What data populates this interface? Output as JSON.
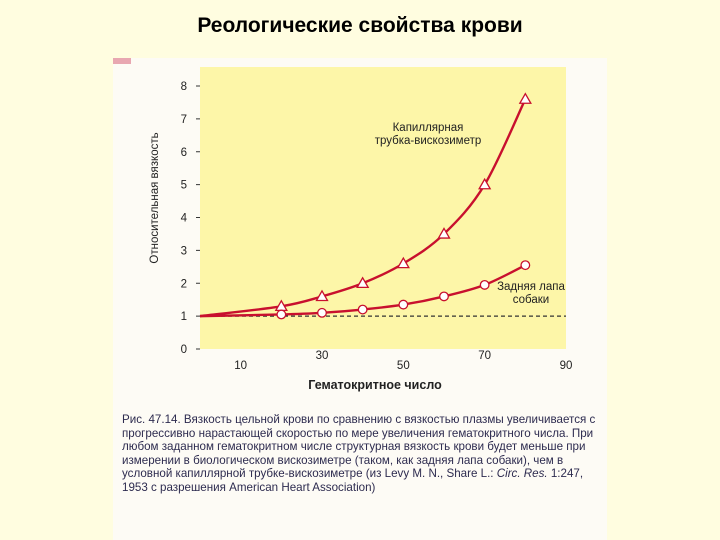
{
  "slide": {
    "title": "Реологические свойства крови"
  },
  "colors": {
    "background": "#fffde0",
    "plot_area": "#fdf6a8",
    "curve": "#c8102e",
    "accent": "#e8a7b1",
    "text": "#2d2b4f"
  },
  "chart_data": {
    "type": "line",
    "title": "",
    "xlabel": "Гематокритное число",
    "ylabel": "Относительная вязкость",
    "xlim": [
      0,
      90
    ],
    "ylim": [
      0,
      8
    ],
    "x_ticks": [
      10,
      30,
      50,
      70,
      90
    ],
    "y_ticks": [
      0,
      1,
      2,
      3,
      4,
      5,
      6,
      7,
      8
    ],
    "grid": false,
    "reference_line": {
      "y": 1,
      "style": "dashed"
    },
    "series": [
      {
        "name": "Капиллярная трубка-вискозиметр",
        "marker": "triangle",
        "x": [
          0,
          20,
          30,
          40,
          50,
          60,
          70,
          80
        ],
        "y": [
          1.0,
          1.3,
          1.6,
          2.0,
          2.6,
          3.5,
          5.0,
          7.6
        ]
      },
      {
        "name": "Задняя лапа собаки",
        "marker": "circle",
        "x": [
          0,
          20,
          30,
          40,
          50,
          60,
          70,
          80
        ],
        "y": [
          1.0,
          1.05,
          1.1,
          1.2,
          1.35,
          1.6,
          1.95,
          2.55
        ]
      }
    ]
  },
  "caption": {
    "part1": "Рис. 47.14. Вязкость цельной крови по сравнению с вязкостью плазмы увеличивается с прогрессивно нарастающей скоростью по мере увеличения гематокритного числа. При любом заданном гематокритном числе структурная вязкость крови будет меньше при измерении в биологическом вискозиметре (таком, как задняя лапа собаки), чем в условной капиллярной трубке-вискозиметре (из Levy M. N., Share L.: ",
    "journal": "Circ. Res.",
    "part2": " 1:247, 1953 с разрешения American Heart Association)"
  }
}
